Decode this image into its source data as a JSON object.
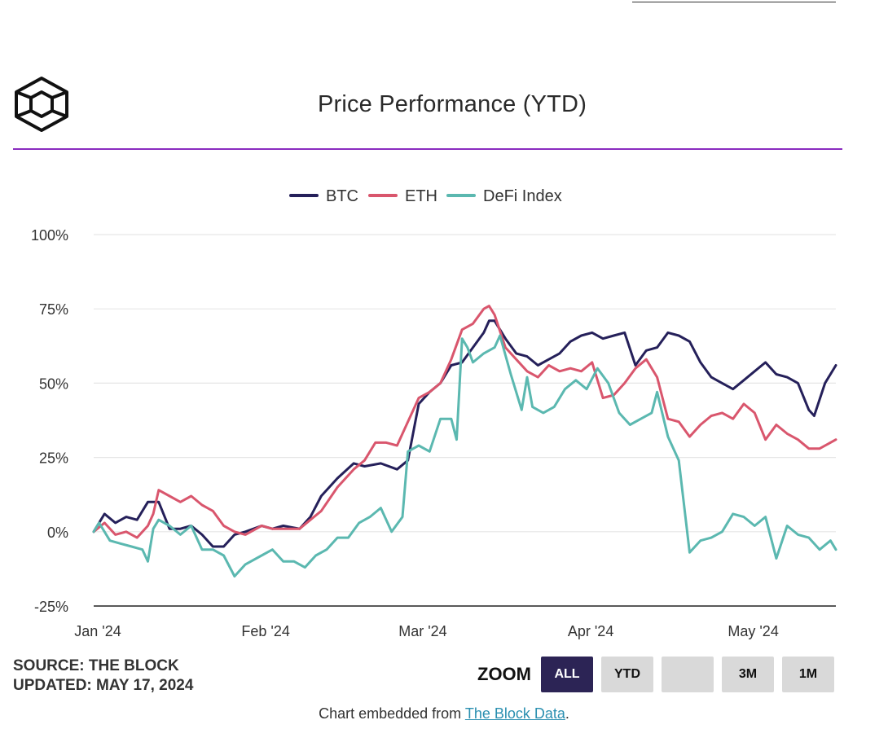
{
  "header": {
    "title": "Price Performance (YTD)",
    "logo": "the-block-cube-logo"
  },
  "colors": {
    "btc": "#25205a",
    "eth": "#d9566d",
    "defi": "#5bb8b0",
    "divider": "#8a2bbf",
    "grid": "#e6e6e6",
    "axis": "#222222"
  },
  "chart_data": {
    "type": "line",
    "title": "Price Performance (YTD)",
    "legend_position": "top-center",
    "grid": true,
    "y_ticks": [
      "100%",
      "75%",
      "50%",
      "25%",
      "0%",
      "-25%"
    ],
    "x_ticks": [
      "Jan '24",
      "Feb '24",
      "Mar '24",
      "Apr '24",
      "May '24"
    ],
    "ylim": [
      -25,
      100
    ],
    "y_unit": "%",
    "x_start": "2024-01-01",
    "x_end": "2024-05-17",
    "series": [
      {
        "name": "BTC",
        "points": [
          [
            "2024-01-01",
            0
          ],
          [
            "2024-01-03",
            6
          ],
          [
            "2024-01-05",
            3
          ],
          [
            "2024-01-07",
            5
          ],
          [
            "2024-01-09",
            4
          ],
          [
            "2024-01-11",
            10
          ],
          [
            "2024-01-13",
            10
          ],
          [
            "2024-01-15",
            1
          ],
          [
            "2024-01-17",
            1
          ],
          [
            "2024-01-19",
            2
          ],
          [
            "2024-01-21",
            -1
          ],
          [
            "2024-01-23",
            -5
          ],
          [
            "2024-01-25",
            -5
          ],
          [
            "2024-01-27",
            -1
          ],
          [
            "2024-01-29",
            0
          ],
          [
            "2024-02-01",
            2
          ],
          [
            "2024-02-03",
            1
          ],
          [
            "2024-02-05",
            2
          ],
          [
            "2024-02-08",
            1
          ],
          [
            "2024-02-10",
            5
          ],
          [
            "2024-02-12",
            12
          ],
          [
            "2024-02-15",
            18
          ],
          [
            "2024-02-18",
            23
          ],
          [
            "2024-02-20",
            22
          ],
          [
            "2024-02-23",
            23
          ],
          [
            "2024-02-26",
            21
          ],
          [
            "2024-02-28",
            24
          ],
          [
            "2024-03-01",
            43
          ],
          [
            "2024-03-03",
            47
          ],
          [
            "2024-03-05",
            50
          ],
          [
            "2024-03-07",
            56
          ],
          [
            "2024-03-09",
            57
          ],
          [
            "2024-03-11",
            62
          ],
          [
            "2024-03-13",
            67
          ],
          [
            "2024-03-14",
            71
          ],
          [
            "2024-03-15",
            71
          ],
          [
            "2024-03-17",
            65
          ],
          [
            "2024-03-19",
            60
          ],
          [
            "2024-03-21",
            59
          ],
          [
            "2024-03-23",
            56
          ],
          [
            "2024-03-25",
            58
          ],
          [
            "2024-03-27",
            60
          ],
          [
            "2024-03-29",
            64
          ],
          [
            "2024-03-31",
            66
          ],
          [
            "2024-04-02",
            67
          ],
          [
            "2024-04-04",
            65
          ],
          [
            "2024-04-06",
            66
          ],
          [
            "2024-04-08",
            67
          ],
          [
            "2024-04-10",
            56
          ],
          [
            "2024-04-12",
            61
          ],
          [
            "2024-04-14",
            62
          ],
          [
            "2024-04-16",
            67
          ],
          [
            "2024-04-18",
            66
          ],
          [
            "2024-04-20",
            64
          ],
          [
            "2024-04-22",
            57
          ],
          [
            "2024-04-24",
            52
          ],
          [
            "2024-04-26",
            50
          ],
          [
            "2024-04-28",
            48
          ],
          [
            "2024-04-30",
            51
          ],
          [
            "2024-05-02",
            54
          ],
          [
            "2024-05-04",
            57
          ],
          [
            "2024-05-06",
            53
          ],
          [
            "2024-05-08",
            52
          ],
          [
            "2024-05-10",
            50
          ],
          [
            "2024-05-12",
            41
          ],
          [
            "2024-05-13",
            39
          ],
          [
            "2024-05-15",
            50
          ],
          [
            "2024-05-17",
            56
          ]
        ]
      },
      {
        "name": "ETH",
        "points": [
          [
            "2024-01-01",
            0
          ],
          [
            "2024-01-03",
            3
          ],
          [
            "2024-01-05",
            -1
          ],
          [
            "2024-01-07",
            0
          ],
          [
            "2024-01-09",
            -2
          ],
          [
            "2024-01-11",
            2
          ],
          [
            "2024-01-12",
            6
          ],
          [
            "2024-01-13",
            14
          ],
          [
            "2024-01-15",
            12
          ],
          [
            "2024-01-17",
            10
          ],
          [
            "2024-01-19",
            12
          ],
          [
            "2024-01-21",
            9
          ],
          [
            "2024-01-23",
            7
          ],
          [
            "2024-01-25",
            2
          ],
          [
            "2024-01-27",
            0
          ],
          [
            "2024-01-29",
            -1
          ],
          [
            "2024-02-01",
            2
          ],
          [
            "2024-02-03",
            1
          ],
          [
            "2024-02-05",
            1
          ],
          [
            "2024-02-08",
            1
          ],
          [
            "2024-02-10",
            4
          ],
          [
            "2024-02-12",
            7
          ],
          [
            "2024-02-15",
            15
          ],
          [
            "2024-02-18",
            21
          ],
          [
            "2024-02-20",
            24
          ],
          [
            "2024-02-22",
            30
          ],
          [
            "2024-02-24",
            30
          ],
          [
            "2024-02-26",
            29
          ],
          [
            "2024-02-28",
            37
          ],
          [
            "2024-03-01",
            45
          ],
          [
            "2024-03-03",
            47
          ],
          [
            "2024-03-05",
            50
          ],
          [
            "2024-03-07",
            58
          ],
          [
            "2024-03-09",
            68
          ],
          [
            "2024-03-11",
            70
          ],
          [
            "2024-03-13",
            75
          ],
          [
            "2024-03-14",
            76
          ],
          [
            "2024-03-15",
            73
          ],
          [
            "2024-03-17",
            62
          ],
          [
            "2024-03-19",
            58
          ],
          [
            "2024-03-21",
            54
          ],
          [
            "2024-03-23",
            52
          ],
          [
            "2024-03-25",
            56
          ],
          [
            "2024-03-27",
            54
          ],
          [
            "2024-03-29",
            55
          ],
          [
            "2024-03-31",
            54
          ],
          [
            "2024-04-02",
            57
          ],
          [
            "2024-04-04",
            45
          ],
          [
            "2024-04-06",
            46
          ],
          [
            "2024-04-08",
            50
          ],
          [
            "2024-04-10",
            55
          ],
          [
            "2024-04-12",
            58
          ],
          [
            "2024-04-14",
            52
          ],
          [
            "2024-04-16",
            38
          ],
          [
            "2024-04-18",
            37
          ],
          [
            "2024-04-20",
            32
          ],
          [
            "2024-04-22",
            36
          ],
          [
            "2024-04-24",
            39
          ],
          [
            "2024-04-26",
            40
          ],
          [
            "2024-04-28",
            38
          ],
          [
            "2024-04-30",
            43
          ],
          [
            "2024-05-02",
            40
          ],
          [
            "2024-05-04",
            31
          ],
          [
            "2024-05-06",
            36
          ],
          [
            "2024-05-08",
            33
          ],
          [
            "2024-05-10",
            31
          ],
          [
            "2024-05-12",
            28
          ],
          [
            "2024-05-14",
            28
          ],
          [
            "2024-05-17",
            31
          ]
        ]
      },
      {
        "name": "DeFi Index",
        "points": [
          [
            "2024-01-01",
            0
          ],
          [
            "2024-01-02",
            3
          ],
          [
            "2024-01-04",
            -3
          ],
          [
            "2024-01-06",
            -4
          ],
          [
            "2024-01-08",
            -5
          ],
          [
            "2024-01-10",
            -6
          ],
          [
            "2024-01-11",
            -10
          ],
          [
            "2024-01-12",
            1
          ],
          [
            "2024-01-13",
            4
          ],
          [
            "2024-01-15",
            2
          ],
          [
            "2024-01-17",
            -1
          ],
          [
            "2024-01-19",
            2
          ],
          [
            "2024-01-21",
            -6
          ],
          [
            "2024-01-23",
            -6
          ],
          [
            "2024-01-25",
            -8
          ],
          [
            "2024-01-27",
            -15
          ],
          [
            "2024-01-29",
            -11
          ],
          [
            "2024-02-01",
            -8
          ],
          [
            "2024-02-03",
            -6
          ],
          [
            "2024-02-05",
            -10
          ],
          [
            "2024-02-07",
            -10
          ],
          [
            "2024-02-09",
            -12
          ],
          [
            "2024-02-11",
            -8
          ],
          [
            "2024-02-13",
            -6
          ],
          [
            "2024-02-15",
            -2
          ],
          [
            "2024-02-17",
            -2
          ],
          [
            "2024-02-19",
            3
          ],
          [
            "2024-02-21",
            5
          ],
          [
            "2024-02-23",
            8
          ],
          [
            "2024-02-25",
            0
          ],
          [
            "2024-02-27",
            5
          ],
          [
            "2024-02-28",
            27
          ],
          [
            "2024-03-01",
            29
          ],
          [
            "2024-03-03",
            27
          ],
          [
            "2024-03-05",
            38
          ],
          [
            "2024-03-07",
            38
          ],
          [
            "2024-03-08",
            31
          ],
          [
            "2024-03-09",
            65
          ],
          [
            "2024-03-10",
            62
          ],
          [
            "2024-03-11",
            57
          ],
          [
            "2024-03-13",
            60
          ],
          [
            "2024-03-15",
            62
          ],
          [
            "2024-03-16",
            66
          ],
          [
            "2024-03-18",
            53
          ],
          [
            "2024-03-20",
            41
          ],
          [
            "2024-03-21",
            52
          ],
          [
            "2024-03-22",
            42
          ],
          [
            "2024-03-24",
            40
          ],
          [
            "2024-03-26",
            42
          ],
          [
            "2024-03-28",
            48
          ],
          [
            "2024-03-30",
            51
          ],
          [
            "2024-04-01",
            48
          ],
          [
            "2024-04-03",
            55
          ],
          [
            "2024-04-05",
            50
          ],
          [
            "2024-04-07",
            40
          ],
          [
            "2024-04-09",
            36
          ],
          [
            "2024-04-11",
            38
          ],
          [
            "2024-04-13",
            40
          ],
          [
            "2024-04-14",
            47
          ],
          [
            "2024-04-16",
            32
          ],
          [
            "2024-04-18",
            24
          ],
          [
            "2024-04-20",
            -7
          ],
          [
            "2024-04-22",
            -3
          ],
          [
            "2024-04-24",
            -2
          ],
          [
            "2024-04-26",
            0
          ],
          [
            "2024-04-28",
            6
          ],
          [
            "2024-04-30",
            5
          ],
          [
            "2024-05-02",
            2
          ],
          [
            "2024-05-04",
            5
          ],
          [
            "2024-05-06",
            -9
          ],
          [
            "2024-05-08",
            2
          ],
          [
            "2024-05-10",
            -1
          ],
          [
            "2024-05-12",
            -2
          ],
          [
            "2024-05-14",
            -6
          ],
          [
            "2024-05-16",
            -3
          ],
          [
            "2024-05-17",
            -6
          ]
        ]
      }
    ]
  },
  "footer": {
    "source": "SOURCE: THE BLOCK",
    "updated": "UPDATED: MAY 17, 2024",
    "zoom_label": "ZOOM",
    "zoom_buttons": [
      "ALL",
      "YTD",
      "",
      "3M",
      "1M"
    ],
    "zoom_selected": "ALL",
    "embed_prefix": "Chart embedded from ",
    "embed_link": "The Block Data",
    "embed_suffix": "."
  }
}
